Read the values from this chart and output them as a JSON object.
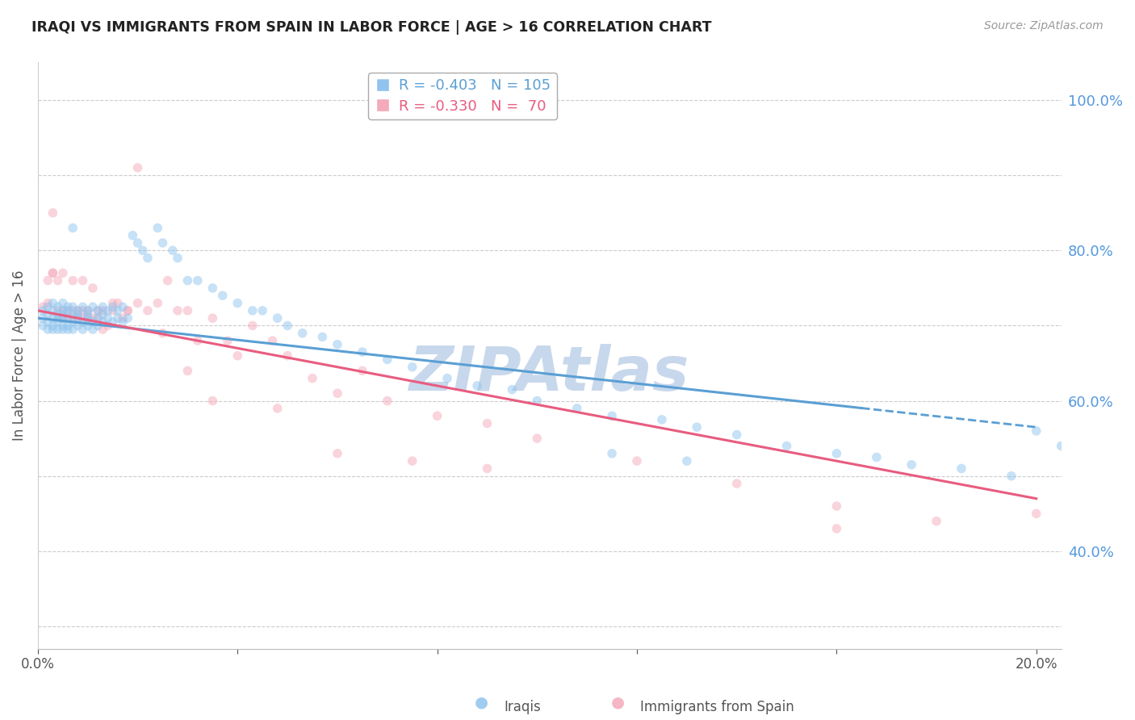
{
  "title": "IRAQI VS IMMIGRANTS FROM SPAIN IN LABOR FORCE | AGE > 16 CORRELATION CHART",
  "source": "Source: ZipAtlas.com",
  "ylabel": "In Labor Force | Age > 16",
  "xlim": [
    0.0,
    0.205
  ],
  "ylim": [
    0.27,
    1.05
  ],
  "right_yticks": [
    1.0,
    0.8,
    0.6,
    0.4
  ],
  "grid_color": "#cccccc",
  "background_color": "#ffffff",
  "series": [
    {
      "name": "Iraqis",
      "R": -0.403,
      "N": 105,
      "color": "#90C4EE",
      "line_color": "#5A9FD4",
      "marker_alpha": 0.5,
      "marker_size": 70
    },
    {
      "name": "Immigrants from Spain",
      "R": -0.33,
      "N": 70,
      "color": "#F4AABB",
      "line_color": "#E85C80",
      "marker_alpha": 0.5,
      "marker_size": 70
    }
  ],
  "watermark": "ZIPAtlas",
  "watermark_color": "#C8D8EC",
  "title_color": "#222222",
  "right_axis_color": "#5599DD",
  "iraqi_x": [
    0.001,
    0.001,
    0.001,
    0.002,
    0.002,
    0.002,
    0.002,
    0.003,
    0.003,
    0.003,
    0.003,
    0.003,
    0.004,
    0.004,
    0.004,
    0.004,
    0.004,
    0.005,
    0.005,
    0.005,
    0.005,
    0.005,
    0.005,
    0.006,
    0.006,
    0.006,
    0.006,
    0.006,
    0.007,
    0.007,
    0.007,
    0.007,
    0.007,
    0.008,
    0.008,
    0.008,
    0.008,
    0.009,
    0.009,
    0.009,
    0.01,
    0.01,
    0.01,
    0.01,
    0.011,
    0.011,
    0.011,
    0.012,
    0.012,
    0.012,
    0.013,
    0.013,
    0.013,
    0.014,
    0.014,
    0.015,
    0.015,
    0.016,
    0.016,
    0.017,
    0.017,
    0.018,
    0.019,
    0.02,
    0.021,
    0.022,
    0.024,
    0.025,
    0.027,
    0.028,
    0.03,
    0.032,
    0.035,
    0.037,
    0.04,
    0.043,
    0.045,
    0.048,
    0.05,
    0.053,
    0.057,
    0.06,
    0.065,
    0.07,
    0.075,
    0.082,
    0.088,
    0.095,
    0.1,
    0.108,
    0.115,
    0.125,
    0.132,
    0.14,
    0.15,
    0.16,
    0.168,
    0.175,
    0.185,
    0.195,
    0.2,
    0.205,
    0.21,
    0.115,
    0.13
  ],
  "iraqi_y": [
    0.72,
    0.71,
    0.7,
    0.725,
    0.715,
    0.705,
    0.695,
    0.72,
    0.71,
    0.7,
    0.73,
    0.695,
    0.715,
    0.725,
    0.705,
    0.695,
    0.71,
    0.72,
    0.71,
    0.73,
    0.7,
    0.715,
    0.695,
    0.725,
    0.71,
    0.7,
    0.72,
    0.695,
    0.715,
    0.725,
    0.705,
    0.695,
    0.83,
    0.72,
    0.71,
    0.7,
    0.715,
    0.725,
    0.705,
    0.695,
    0.72,
    0.71,
    0.7,
    0.715,
    0.725,
    0.705,
    0.695,
    0.72,
    0.71,
    0.7,
    0.715,
    0.725,
    0.705,
    0.72,
    0.71,
    0.725,
    0.705,
    0.72,
    0.71,
    0.725,
    0.705,
    0.71,
    0.82,
    0.81,
    0.8,
    0.79,
    0.83,
    0.81,
    0.8,
    0.79,
    0.76,
    0.76,
    0.75,
    0.74,
    0.73,
    0.72,
    0.72,
    0.71,
    0.7,
    0.69,
    0.685,
    0.675,
    0.665,
    0.655,
    0.645,
    0.63,
    0.62,
    0.615,
    0.6,
    0.59,
    0.58,
    0.575,
    0.565,
    0.555,
    0.54,
    0.53,
    0.525,
    0.515,
    0.51,
    0.5,
    0.56,
    0.54,
    0.53,
    0.53,
    0.52
  ],
  "spain_x": [
    0.001,
    0.002,
    0.002,
    0.003,
    0.003,
    0.004,
    0.004,
    0.005,
    0.005,
    0.006,
    0.006,
    0.007,
    0.007,
    0.008,
    0.008,
    0.009,
    0.009,
    0.01,
    0.01,
    0.011,
    0.012,
    0.012,
    0.013,
    0.014,
    0.015,
    0.016,
    0.017,
    0.018,
    0.02,
    0.022,
    0.024,
    0.026,
    0.028,
    0.03,
    0.032,
    0.035,
    0.038,
    0.04,
    0.043,
    0.047,
    0.05,
    0.055,
    0.06,
    0.065,
    0.07,
    0.08,
    0.09,
    0.1,
    0.12,
    0.14,
    0.16,
    0.18,
    0.2,
    0.003,
    0.005,
    0.007,
    0.009,
    0.011,
    0.013,
    0.015,
    0.018,
    0.02,
    0.025,
    0.03,
    0.035,
    0.048,
    0.06,
    0.075,
    0.09,
    0.16
  ],
  "spain_y": [
    0.725,
    0.73,
    0.76,
    0.77,
    0.85,
    0.72,
    0.76,
    0.71,
    0.72,
    0.71,
    0.72,
    0.71,
    0.72,
    0.71,
    0.72,
    0.71,
    0.72,
    0.71,
    0.72,
    0.71,
    0.72,
    0.71,
    0.695,
    0.7,
    0.72,
    0.73,
    0.71,
    0.72,
    0.91,
    0.72,
    0.73,
    0.76,
    0.72,
    0.72,
    0.68,
    0.71,
    0.68,
    0.66,
    0.7,
    0.68,
    0.66,
    0.63,
    0.61,
    0.64,
    0.6,
    0.58,
    0.57,
    0.55,
    0.52,
    0.49,
    0.46,
    0.44,
    0.45,
    0.77,
    0.77,
    0.76,
    0.76,
    0.75,
    0.72,
    0.73,
    0.72,
    0.73,
    0.69,
    0.64,
    0.6,
    0.59,
    0.53,
    0.52,
    0.51,
    0.43
  ],
  "iraqi_line_x0": 0.0,
  "iraqi_line_x1": 0.2,
  "iraqi_line_y0": 0.71,
  "iraqi_line_y1": 0.565,
  "spain_line_x0": 0.0,
  "spain_line_x1": 0.2,
  "spain_line_y0": 0.72,
  "spain_line_y1": 0.47
}
